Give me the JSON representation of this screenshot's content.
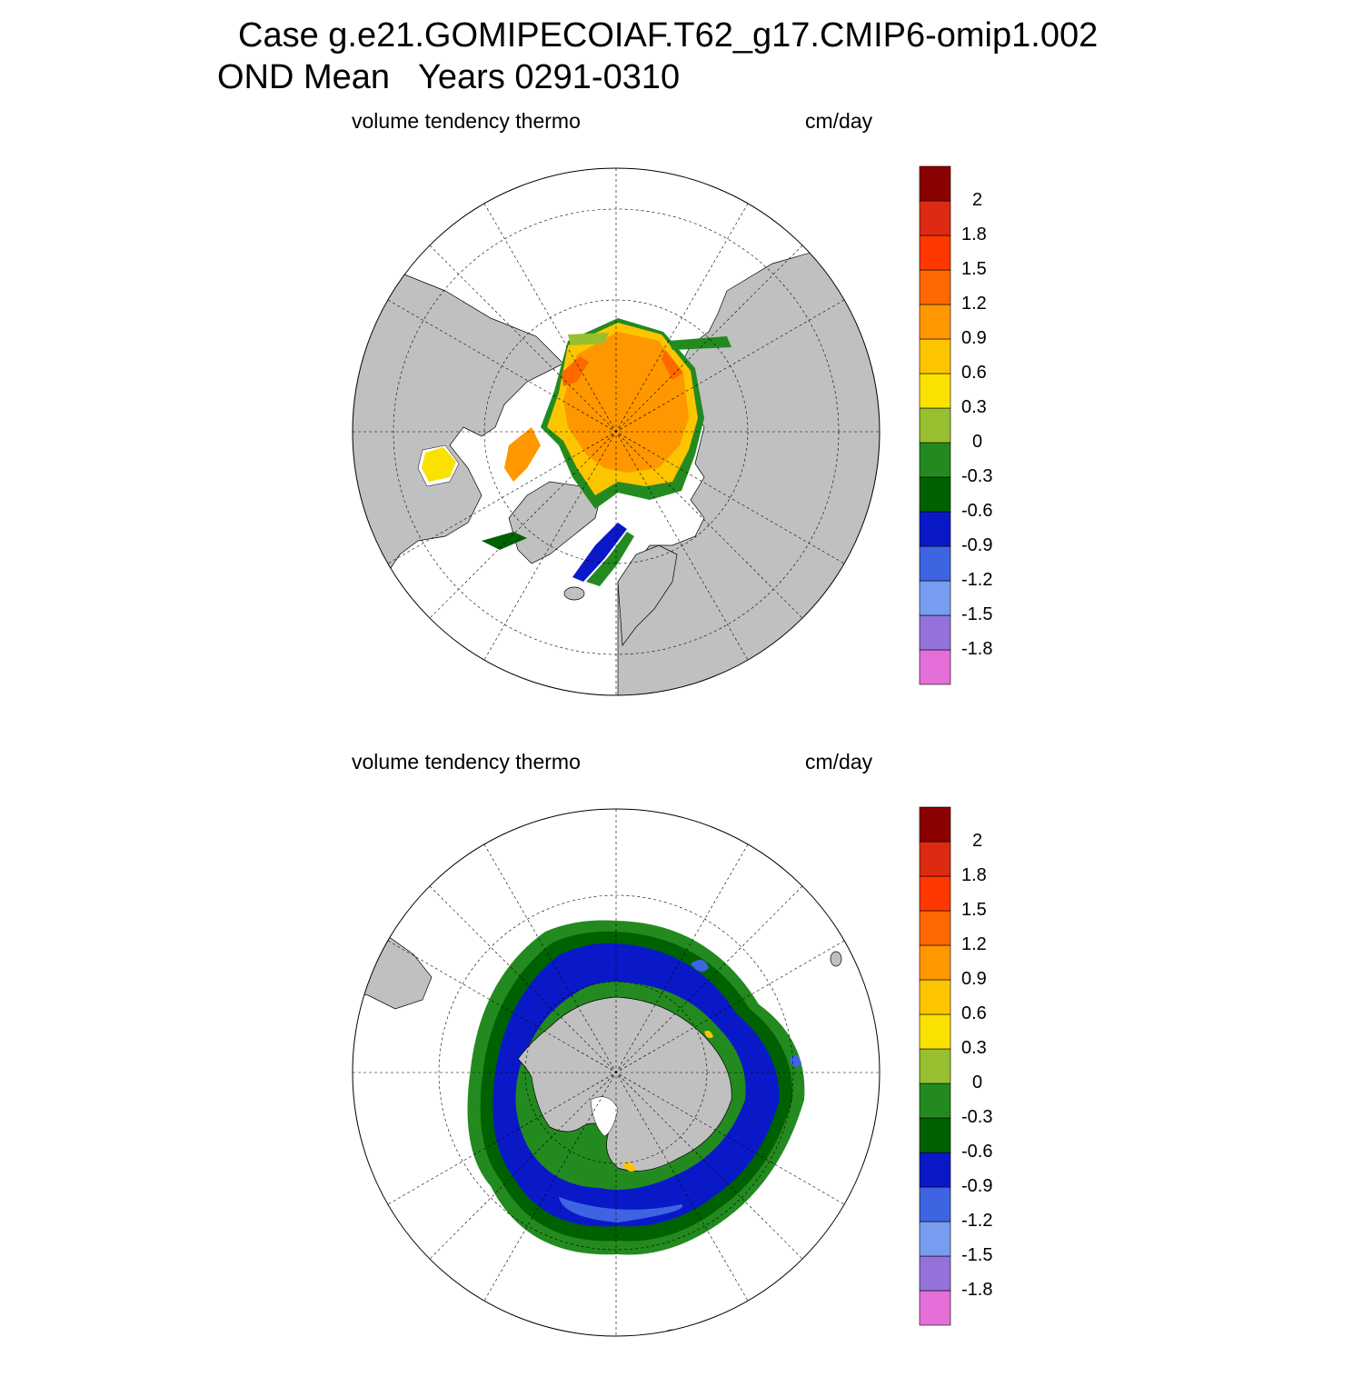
{
  "header": {
    "title_line1": "Case g.e21.GOMIPECOIAF.T62_g17.CMIP6-omip1.002",
    "title_line2": "OND Mean   Years 0291-0310"
  },
  "colorbar": {
    "colors": [
      "#e56fd9",
      "#9372dc",
      "#789cf0",
      "#3e64e2",
      "#0a19c8",
      "#006100",
      "#238a1f",
      "#98bf2f",
      "#fae200",
      "#fdc500",
      "#fe9700",
      "#fe6800",
      "#fe3800",
      "#dc2a13",
      "#8b0000"
    ],
    "tick_labels": [
      "-1.8",
      "-1.5",
      "-1.2",
      "-0.9",
      "-0.6",
      "-0.3",
      "0",
      "0.3",
      "0.6",
      "0.9",
      "1.2",
      "1.5",
      "1.8",
      "2"
    ]
  },
  "panels": [
    {
      "id": "north",
      "left_label": "volume tendency thermo",
      "right_label": "cm/day",
      "colors": {
        "land": "#c0c0c0",
        "ocean": "#ffffff"
      }
    },
    {
      "id": "south",
      "left_label": "volume tendency thermo",
      "right_label": "cm/day",
      "colors": {
        "land": "#c0c0c0",
        "ocean": "#ffffff"
      }
    }
  ]
}
